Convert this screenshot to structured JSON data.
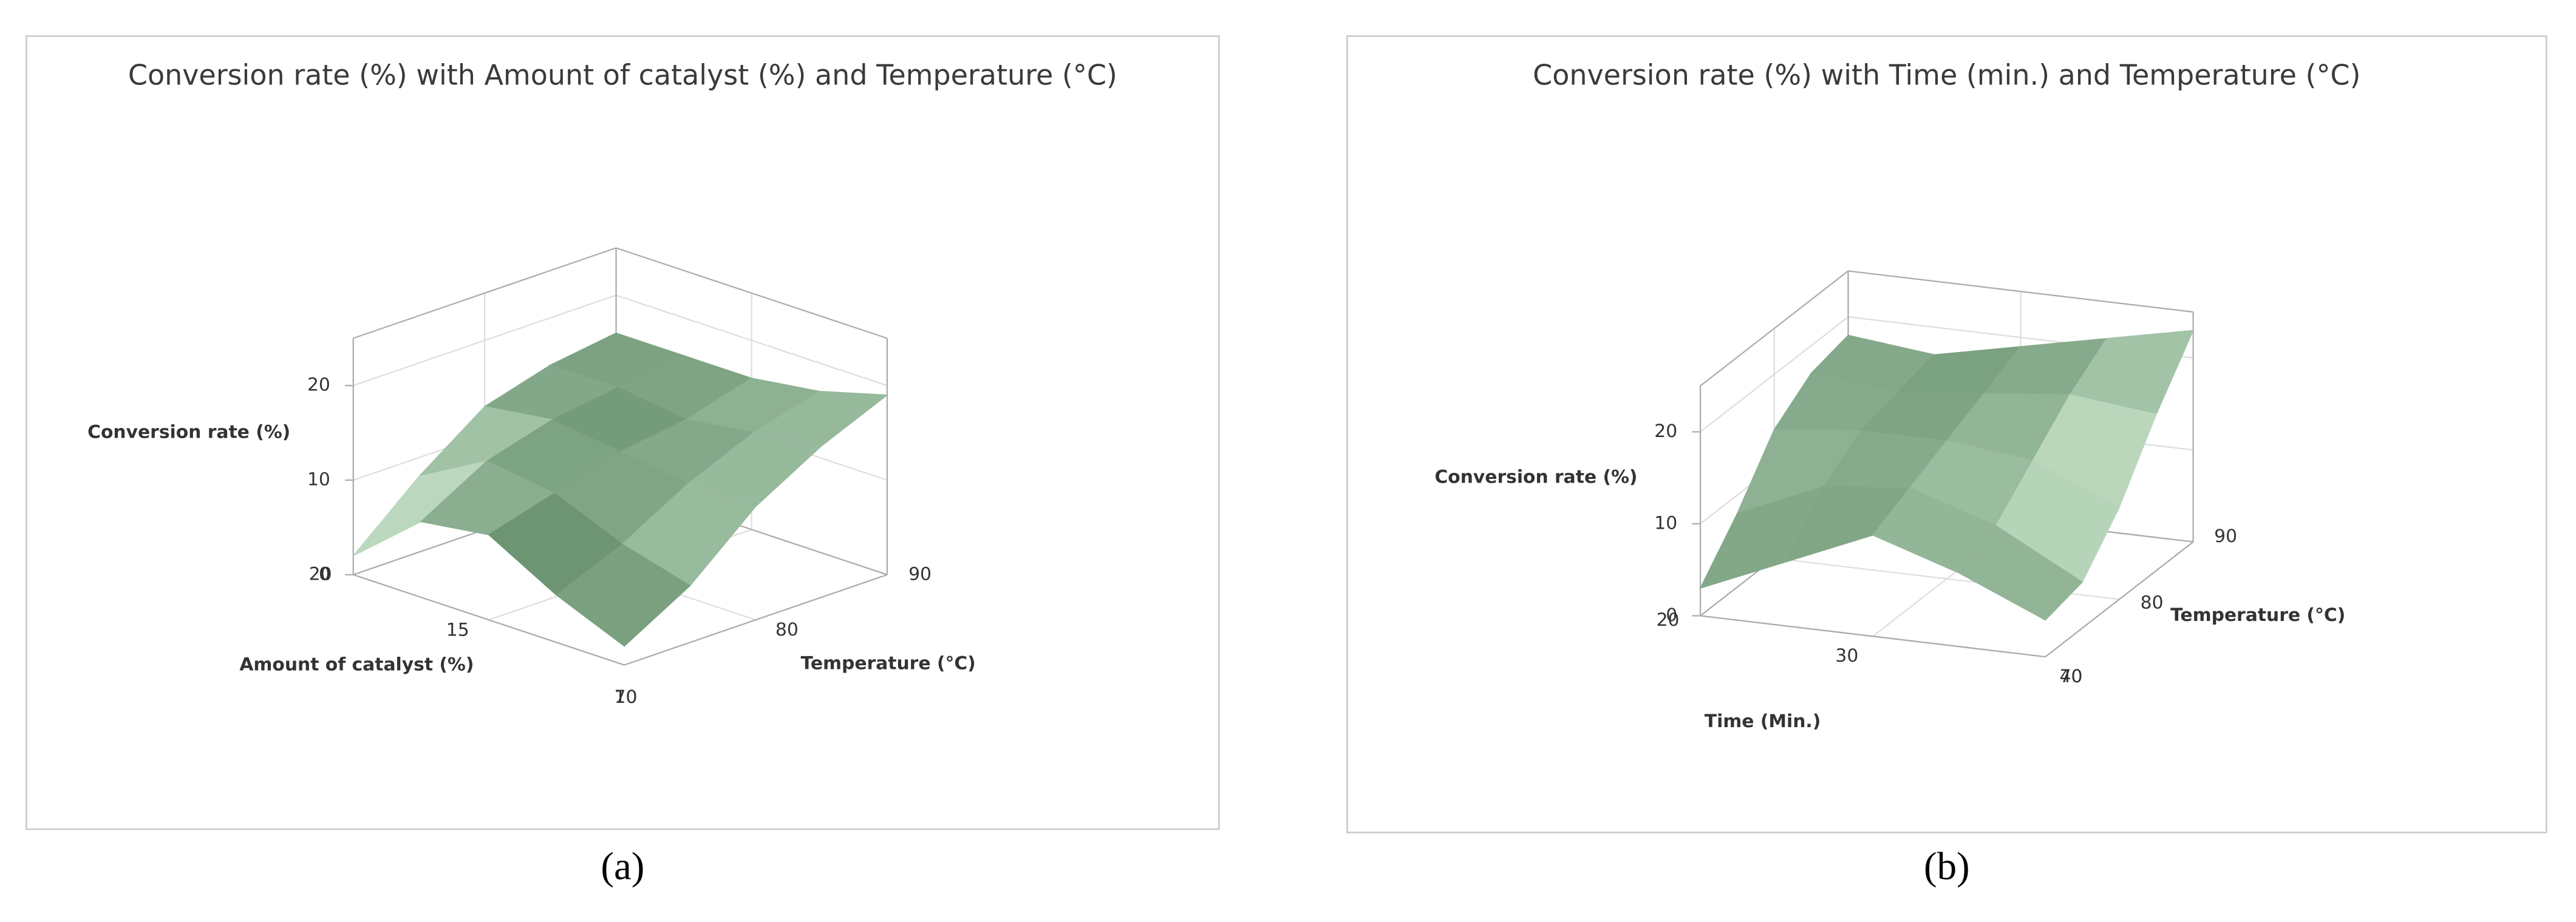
{
  "chart_data": [
    {
      "type": "surface",
      "title": "Conversion rate (%) with Amount of catalyst (%) and Temperature (°C)",
      "panel_label": "(a)",
      "x_label": "Amount of catalyst (%)",
      "y_label": "Temperature (°C)",
      "z_label": "Conversion rate (%)",
      "x": [
        10,
        12.5,
        15,
        17.5,
        20
      ],
      "y": [
        70,
        75,
        80,
        85,
        90
      ],
      "z": [
        [
          2,
          6,
          12,
          16,
          19
        ],
        [
          5,
          8,
          12,
          15,
          17
        ],
        [
          9,
          11,
          13,
          14,
          16
        ],
        [
          8,
          12,
          14,
          15,
          16
        ],
        [
          2,
          8,
          13,
          15,
          16
        ]
      ],
      "xlim": [
        10,
        20
      ],
      "ylim": [
        70,
        90
      ],
      "zlim": [
        0,
        25
      ],
      "xticks": [
        10,
        15,
        20
      ],
      "yticks": [
        70,
        80,
        90
      ],
      "zticks": [
        0,
        10,
        20
      ],
      "colors": [
        "#154a21",
        "#e6fde6"
      ],
      "grid": true
    },
    {
      "type": "surface",
      "title": "Conversion rate (%) with Time (min.) and Temperature (°C)",
      "panel_label": "(b)",
      "x_label": "Time (Min.)",
      "y_label": "Temperature (°C)",
      "z_label": "Conversion rate (%)",
      "x": [
        20,
        25,
        30,
        35,
        40
      ],
      "y": [
        70,
        75,
        80,
        85,
        90
      ],
      "z": [
        [
          3,
          8,
          14,
          17,
          18
        ],
        [
          7,
          12,
          15,
          16,
          17
        ],
        [
          11,
          13,
          15,
          17,
          19
        ],
        [
          8,
          10,
          14,
          18,
          21
        ],
        [
          4,
          5,
          10,
          17,
          23
        ]
      ],
      "xlim": [
        20,
        40
      ],
      "ylim": [
        70,
        90
      ],
      "zlim": [
        0,
        25
      ],
      "xticks": [
        20,
        30,
        40
      ],
      "yticks": [
        70,
        80,
        90
      ],
      "zticks": [
        0,
        10,
        20
      ],
      "colors": [
        "#154a21",
        "#e6fde6"
      ],
      "grid": true
    }
  ]
}
